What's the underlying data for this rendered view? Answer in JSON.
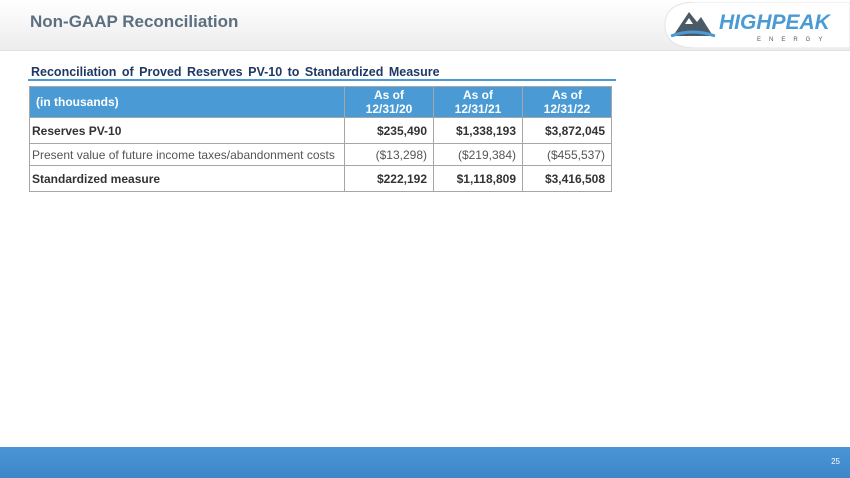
{
  "header": {
    "title": "Non-GAAP Reconciliation",
    "logo": {
      "name": "HIGHPEAK",
      "sub": "ENERGY"
    }
  },
  "section_title": "Reconciliation of Proved Reserves PV-10 to Standardized Measure",
  "table": {
    "header": [
      "(in thousands)",
      [
        "As of",
        "12/31/20"
      ],
      [
        "As of",
        "12/31/21"
      ],
      [
        "As of",
        "12/31/22"
      ]
    ],
    "rows": [
      [
        "Reserves PV-10",
        "$235,490",
        "$1,338,193",
        "$3,872,045"
      ],
      [
        "Present value of future income taxes/abandonment costs",
        "($13,298)",
        "($219,384)",
        "($455,537)"
      ],
      [
        "Standardized measure",
        "$222,192",
        "$1,118,809",
        "$3,416,508"
      ]
    ]
  },
  "footer": {
    "page_number": "25"
  }
}
